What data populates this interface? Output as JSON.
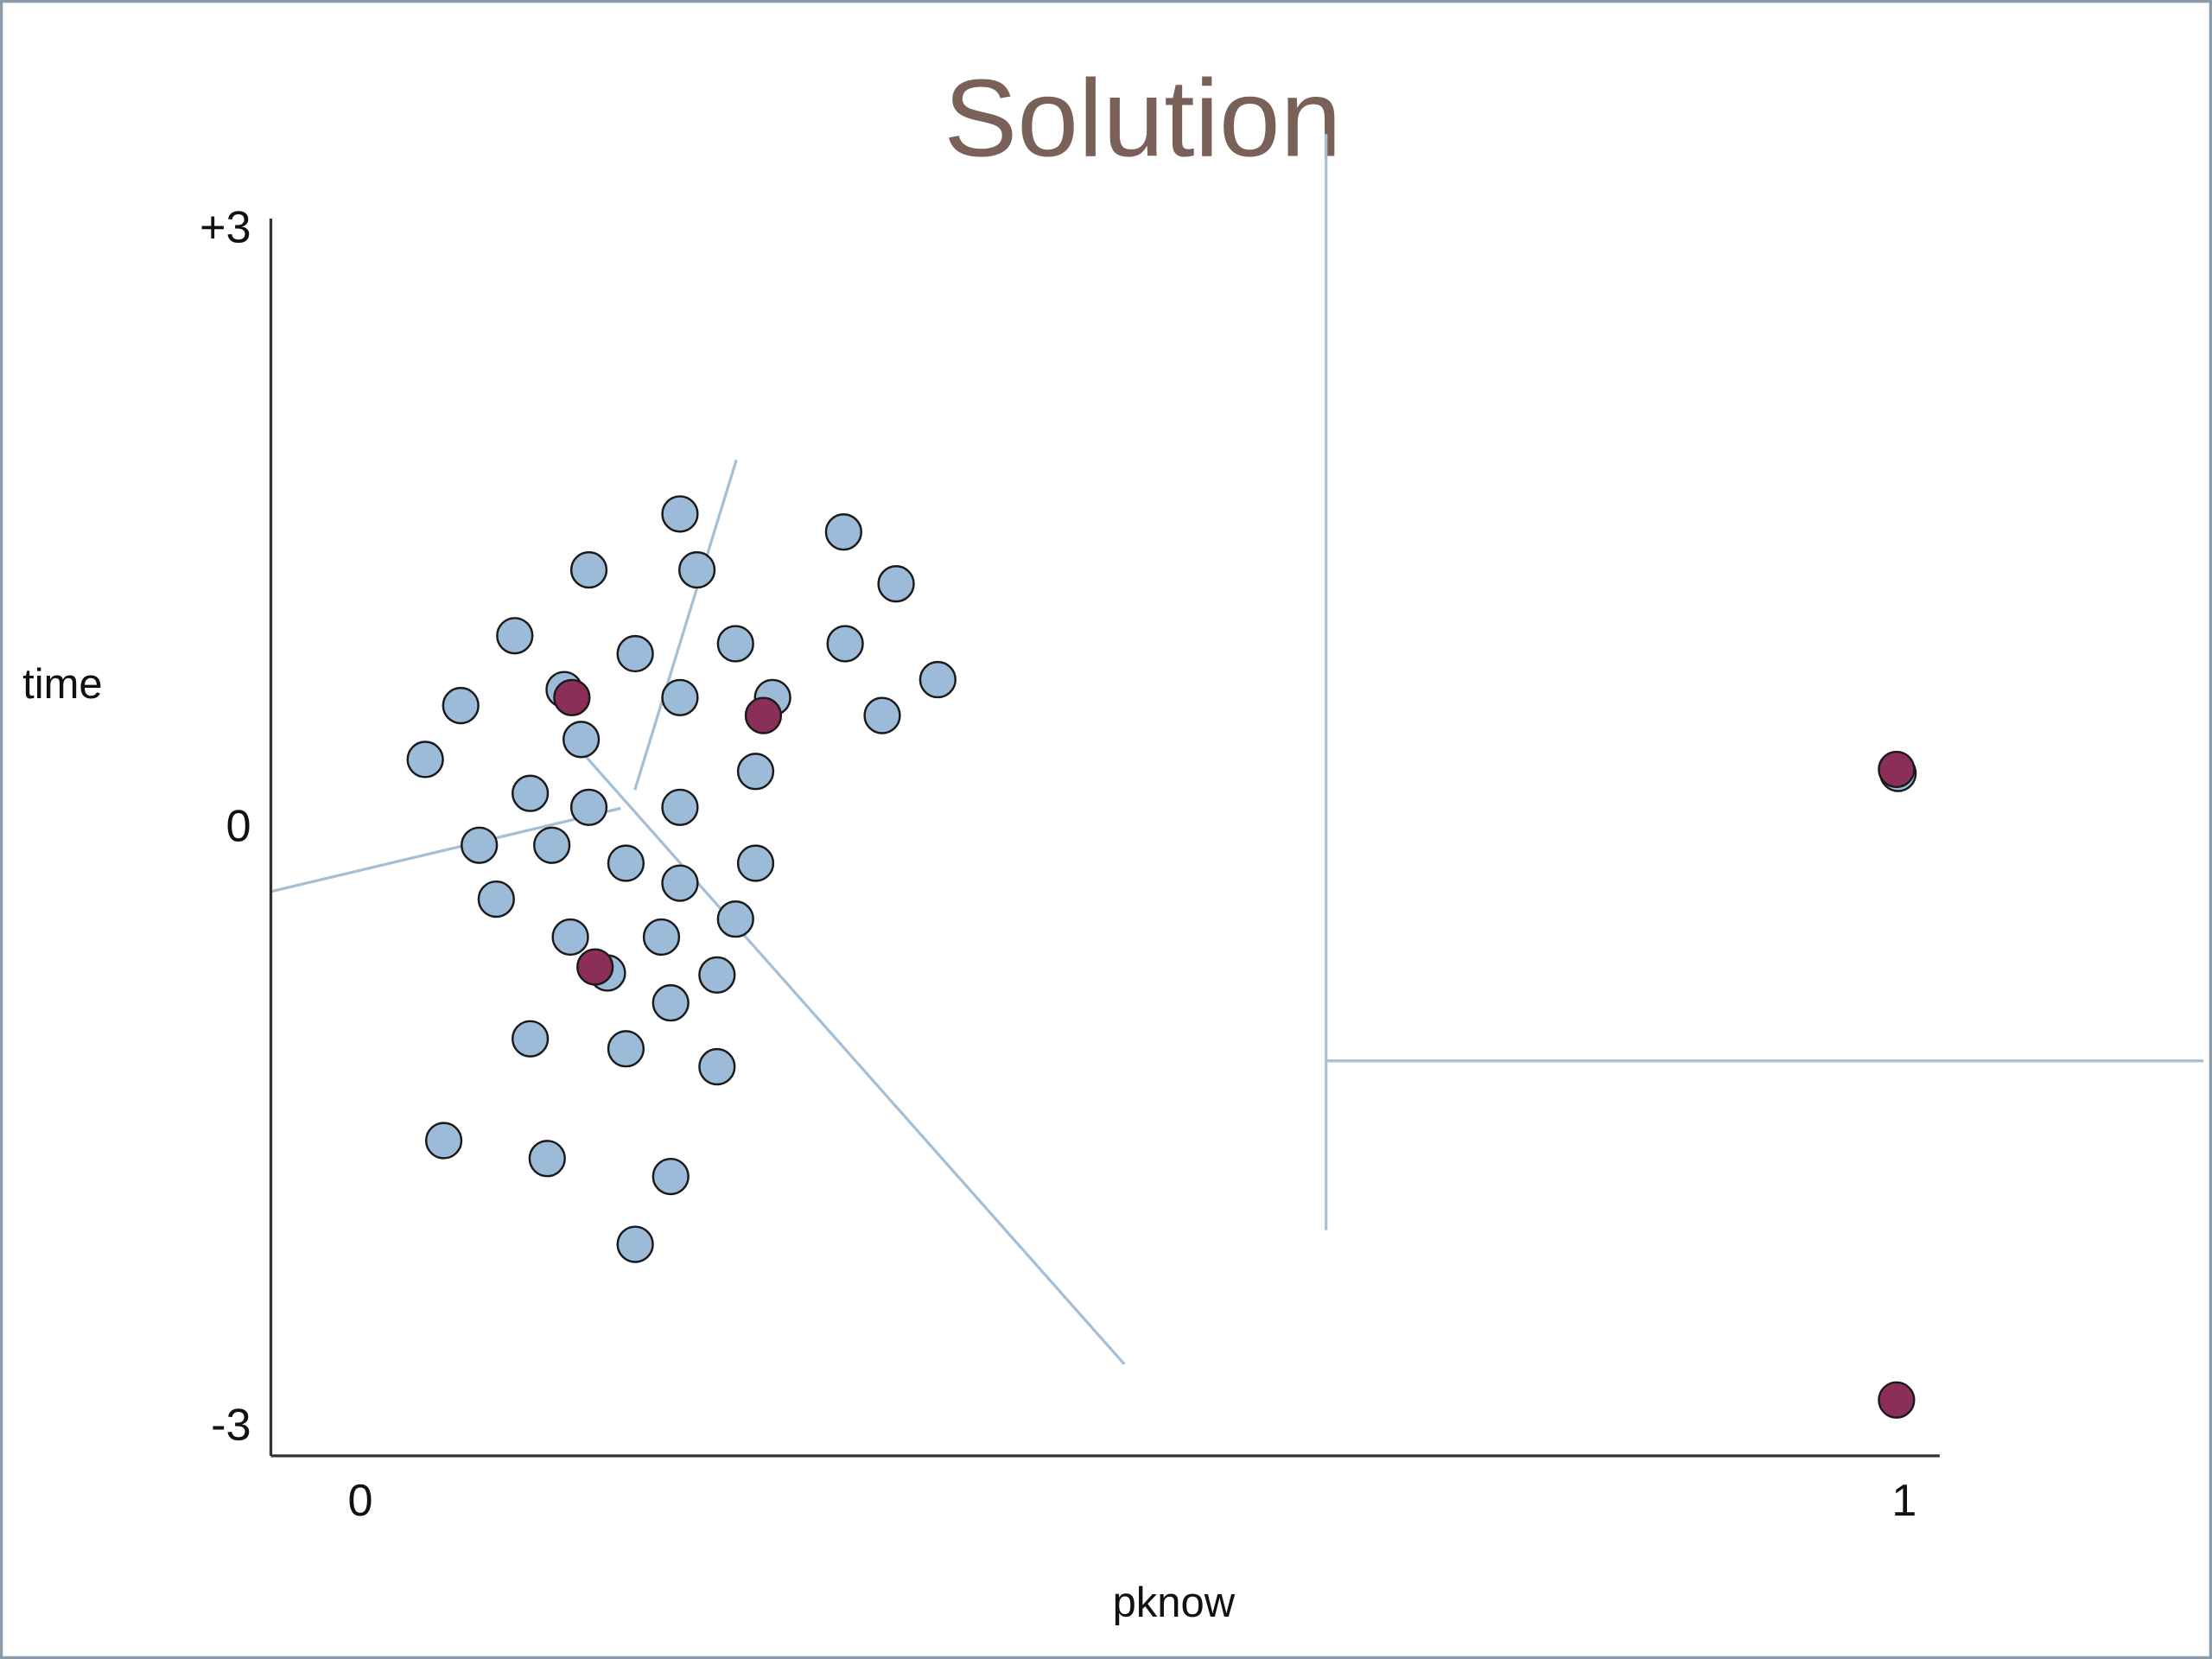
{
  "chart_data": {
    "type": "scatter",
    "title": "Solution",
    "x_label": "pknow",
    "y_label": "time",
    "xlim": [
      -0.058,
      1.023
    ],
    "ylim": [
      -3.14,
      3.06
    ],
    "xticks": [
      0,
      1
    ],
    "yticks": [
      {
        "value": 3,
        "label": "+3"
      },
      0,
      -3
    ],
    "series": [
      {
        "color": "#9bbbd8",
        "x": [
          0.207,
          0.313,
          0.148,
          0.218,
          0.347,
          0.1,
          0.178,
          0.243,
          0.314,
          0.374,
          0.065,
          0.132,
          0.207,
          0.267,
          0.338,
          0.143,
          0.042,
          0.256,
          0.11,
          0.148,
          0.207,
          0.077,
          0.124,
          0.172,
          0.256,
          0.207,
          0.088,
          0.243,
          0.136,
          0.195,
          0.16,
          0.231,
          0.201,
          0.11,
          0.172,
          0.231,
          0.054,
          0.121,
          0.201,
          0.178,
          0.996
        ],
        "values": [
          1.58,
          1.49,
          1.3,
          1.3,
          1.23,
          0.97,
          0.88,
          0.93,
          0.93,
          0.75,
          0.62,
          0.7,
          0.66,
          0.66,
          0.57,
          0.45,
          0.35,
          0.29,
          0.18,
          0.11,
          0.11,
          -0.08,
          -0.08,
          -0.17,
          -0.17,
          -0.27,
          -0.35,
          -0.45,
          -0.54,
          -0.54,
          -0.72,
          -0.73,
          -0.87,
          -1.05,
          -1.1,
          -1.19,
          -1.56,
          -1.65,
          -1.74,
          -2.08,
          0.28
        ]
      },
      {
        "color": "#8b2f5a",
        "x": [
          0.137,
          0.261,
          0.152,
          0.995,
          0.995
        ],
        "values": [
          0.66,
          0.57,
          -0.69,
          0.3,
          -2.86
        ]
      }
    ]
  }
}
